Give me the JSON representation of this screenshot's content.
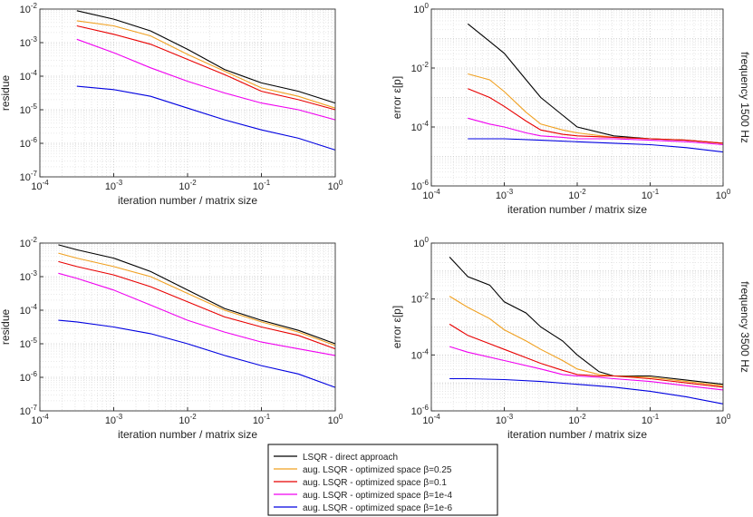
{
  "chart_data": {
    "type": "line",
    "scale": "log-log",
    "grid": true,
    "legend": {
      "placement": "bottom-center",
      "entries": [
        {
          "label": "LSQR - direct approach",
          "color": "#000000"
        },
        {
          "label": "aug. LSQR - optimized space β=0.25",
          "color": "#f0a020"
        },
        {
          "label": "aug. LSQR - optimized space β=0.1",
          "color": "#e80000"
        },
        {
          "label": "aug. LSQR - optimized space β=1e-4",
          "color": "#f000f0"
        },
        {
          "label": "aug. LSQR - optimized space β=1e-6",
          "color": "#0000e0"
        }
      ]
    },
    "panels": [
      {
        "id": "p11",
        "row_label": "",
        "xlabel": "iteration number / matrix size",
        "ylabel": "residue",
        "xlim_exp": [
          -4,
          0
        ],
        "ylim_exp": [
          -7,
          -2
        ],
        "xticks": [
          "10^-4",
          "10^-3",
          "10^-2",
          "10^-1",
          "10^0"
        ],
        "yticks": [
          "10^-7",
          "10^-6",
          "10^-5",
          "10^-4",
          "10^-3",
          "10^-2"
        ],
        "series": [
          {
            "x_log": [
              -3.5,
              -3.0,
              -2.5,
              -2.0,
              -1.5,
              -1.0,
              -0.5,
              0.0
            ],
            "y_log": [
              -2.05,
              -2.3,
              -2.65,
              -3.2,
              -3.8,
              -4.2,
              -4.45,
              -4.8
            ]
          },
          {
            "x_log": [
              -3.5,
              -3.0,
              -2.5,
              -2.0,
              -1.5,
              -1.0,
              -0.5,
              0.0
            ],
            "y_log": [
              -2.35,
              -2.5,
              -2.8,
              -3.35,
              -3.85,
              -4.35,
              -4.6,
              -4.95
            ]
          },
          {
            "x_log": [
              -3.5,
              -3.0,
              -2.5,
              -2.0,
              -1.5,
              -1.0,
              -0.5,
              0.0
            ],
            "y_log": [
              -2.5,
              -2.75,
              -3.05,
              -3.5,
              -3.95,
              -4.45,
              -4.7,
              -5.0
            ]
          },
          {
            "x_log": [
              -3.5,
              -3.0,
              -2.5,
              -2.0,
              -1.5,
              -1.0,
              -0.5,
              0.0
            ],
            "y_log": [
              -2.9,
              -3.3,
              -3.75,
              -4.15,
              -4.5,
              -4.8,
              -5.0,
              -5.3
            ]
          },
          {
            "x_log": [
              -3.5,
              -3.0,
              -2.5,
              -2.0,
              -1.5,
              -1.0,
              -0.5,
              0.0
            ],
            "y_log": [
              -4.3,
              -4.4,
              -4.6,
              -4.95,
              -5.3,
              -5.6,
              -5.85,
              -6.2
            ]
          }
        ]
      },
      {
        "id": "p12",
        "row_label": "frequency 1500 Hz",
        "xlabel": "iteration number / matrix size",
        "ylabel": "error ε[p]",
        "xlim_exp": [
          -4,
          0
        ],
        "ylim_exp": [
          -6,
          0
        ],
        "xticks": [
          "10^-4",
          "10^-3",
          "10^-2",
          "10^-1",
          "10^0"
        ],
        "yticks": [
          "10^-6",
          "10^-4",
          "10^-2",
          "10^0"
        ],
        "series": [
          {
            "x_log": [
              -3.5,
              -3.2,
              -3.0,
              -2.7,
              -2.5,
              -2.2,
              -2.0,
              -1.5,
              -1.0,
              -0.5,
              0.0
            ],
            "y_log": [
              -0.5,
              -1.1,
              -1.5,
              -2.4,
              -3.0,
              -3.6,
              -4.0,
              -4.3,
              -4.4,
              -4.45,
              -4.55
            ]
          },
          {
            "x_log": [
              -3.5,
              -3.2,
              -3.0,
              -2.7,
              -2.5,
              -2.2,
              -2.0,
              -1.5,
              -1.0,
              -0.5,
              0.0
            ],
            "y_log": [
              -2.2,
              -2.4,
              -2.8,
              -3.5,
              -3.9,
              -4.1,
              -4.2,
              -4.35,
              -4.4,
              -4.45,
              -4.55
            ]
          },
          {
            "x_log": [
              -3.5,
              -3.2,
              -3.0,
              -2.7,
              -2.5,
              -2.2,
              -2.0,
              -1.5,
              -1.0,
              -0.5,
              0.0
            ],
            "y_log": [
              -2.7,
              -3.0,
              -3.3,
              -3.8,
              -4.1,
              -4.25,
              -4.3,
              -4.35,
              -4.4,
              -4.45,
              -4.55
            ]
          },
          {
            "x_log": [
              -3.5,
              -3.2,
              -3.0,
              -2.7,
              -2.5,
              -2.2,
              -2.0,
              -1.5,
              -1.0,
              -0.5,
              0.0
            ],
            "y_log": [
              -3.7,
              -3.9,
              -4.0,
              -4.2,
              -4.3,
              -4.35,
              -4.4,
              -4.4,
              -4.45,
              -4.5,
              -4.6
            ]
          },
          {
            "x_log": [
              -3.5,
              -3.0,
              -2.5,
              -2.0,
              -1.5,
              -1.0,
              -0.5,
              0.0
            ],
            "y_log": [
              -4.4,
              -4.4,
              -4.45,
              -4.5,
              -4.55,
              -4.6,
              -4.7,
              -4.85
            ]
          }
        ]
      },
      {
        "id": "p21",
        "row_label": "",
        "xlabel": "iteration number / matrix size",
        "ylabel": "residue",
        "xlim_exp": [
          -4,
          0
        ],
        "ylim_exp": [
          -7,
          -2
        ],
        "xticks": [
          "10^-4",
          "10^-3",
          "10^-2",
          "10^-1",
          "10^0"
        ],
        "yticks": [
          "10^-7",
          "10^-6",
          "10^-5",
          "10^-4",
          "10^-3",
          "10^-2"
        ],
        "series": [
          {
            "x_log": [
              -3.75,
              -3.5,
              -3.0,
              -2.5,
              -2.0,
              -1.5,
              -1.0,
              -0.5,
              0.0
            ],
            "y_log": [
              -2.05,
              -2.2,
              -2.45,
              -2.85,
              -3.4,
              -3.95,
              -4.3,
              -4.6,
              -5.0
            ]
          },
          {
            "x_log": [
              -3.75,
              -3.5,
              -3.0,
              -2.5,
              -2.0,
              -1.5,
              -1.0,
              -0.5,
              0.0
            ],
            "y_log": [
              -2.3,
              -2.45,
              -2.7,
              -3.0,
              -3.5,
              -4.0,
              -4.35,
              -4.65,
              -5.05
            ]
          },
          {
            "x_log": [
              -3.75,
              -3.5,
              -3.0,
              -2.5,
              -2.0,
              -1.5,
              -1.0,
              -0.5,
              0.0
            ],
            "y_log": [
              -2.55,
              -2.7,
              -2.95,
              -3.3,
              -3.75,
              -4.2,
              -4.5,
              -4.75,
              -5.15
            ]
          },
          {
            "x_log": [
              -3.75,
              -3.5,
              -3.0,
              -2.5,
              -2.0,
              -1.5,
              -1.0,
              -0.5,
              0.0
            ],
            "y_log": [
              -2.9,
              -3.05,
              -3.4,
              -3.85,
              -4.3,
              -4.65,
              -4.95,
              -5.15,
              -5.35
            ]
          },
          {
            "x_log": [
              -3.75,
              -3.5,
              -3.0,
              -2.5,
              -2.0,
              -1.5,
              -1.0,
              -0.5,
              0.0
            ],
            "y_log": [
              -4.3,
              -4.35,
              -4.5,
              -4.7,
              -5.0,
              -5.35,
              -5.65,
              -5.9,
              -6.3
            ]
          }
        ]
      },
      {
        "id": "p22",
        "row_label": "frequency 3500 Hz",
        "xlabel": "iteration number / matrix size",
        "ylabel": "error ε[p]",
        "xlim_exp": [
          -4,
          0
        ],
        "ylim_exp": [
          -6,
          0
        ],
        "xticks": [
          "10^-4",
          "10^-3",
          "10^-2",
          "10^-1",
          "10^0"
        ],
        "yticks": [
          "10^-6",
          "10^-4",
          "10^-2",
          "10^0"
        ],
        "series": [
          {
            "x_log": [
              -3.75,
              -3.5,
              -3.2,
              -3.0,
              -2.7,
              -2.5,
              -2.2,
              -2.0,
              -1.7,
              -1.5,
              -1.0,
              -0.5,
              0.0
            ],
            "y_log": [
              -0.5,
              -1.2,
              -1.5,
              -2.1,
              -2.5,
              -3.0,
              -3.5,
              -4.0,
              -4.6,
              -4.75,
              -4.75,
              -4.9,
              -5.05
            ]
          },
          {
            "x_log": [
              -3.75,
              -3.5,
              -3.2,
              -3.0,
              -2.7,
              -2.5,
              -2.2,
              -2.0,
              -1.7,
              -1.5,
              -1.0,
              -0.5,
              0.0
            ],
            "y_log": [
              -1.9,
              -2.3,
              -2.7,
              -3.1,
              -3.5,
              -3.8,
              -4.2,
              -4.5,
              -4.7,
              -4.75,
              -4.8,
              -4.95,
              -5.1
            ]
          },
          {
            "x_log": [
              -3.75,
              -3.5,
              -3.2,
              -3.0,
              -2.7,
              -2.5,
              -2.2,
              -2.0,
              -1.7,
              -1.5,
              -1.0,
              -0.5,
              0.0
            ],
            "y_log": [
              -2.9,
              -3.3,
              -3.6,
              -3.8,
              -4.1,
              -4.3,
              -4.55,
              -4.7,
              -4.75,
              -4.75,
              -4.85,
              -5.0,
              -5.15
            ]
          },
          {
            "x_log": [
              -3.75,
              -3.5,
              -3.0,
              -2.5,
              -2.2,
              -2.0,
              -1.7,
              -1.5,
              -1.0,
              -0.5,
              0.0
            ],
            "y_log": [
              -3.7,
              -3.9,
              -4.2,
              -4.5,
              -4.7,
              -4.75,
              -4.8,
              -4.85,
              -4.95,
              -5.1,
              -5.25
            ]
          },
          {
            "x_log": [
              -3.75,
              -3.5,
              -3.0,
              -2.5,
              -2.0,
              -1.5,
              -1.0,
              -0.5,
              0.0
            ],
            "y_log": [
              -4.85,
              -4.85,
              -4.88,
              -4.95,
              -5.05,
              -5.15,
              -5.3,
              -5.5,
              -5.75
            ]
          }
        ]
      }
    ]
  }
}
